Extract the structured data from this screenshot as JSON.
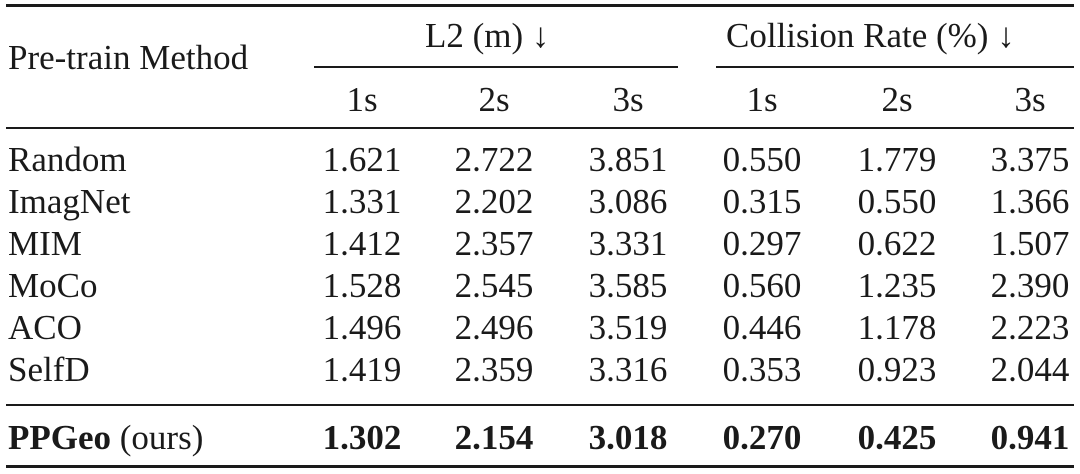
{
  "table": {
    "header": {
      "method": "Pre-train Method",
      "group_l2": "L2 (m) ↓",
      "group_collision": "Collision Rate (%) ↓",
      "sub": [
        "1s",
        "2s",
        "3s",
        "1s",
        "2s",
        "3s"
      ]
    },
    "rows": [
      {
        "name": "Random",
        "values": [
          "1.621",
          "2.722",
          "3.851",
          "0.550",
          "1.779",
          "3.375"
        ]
      },
      {
        "name": "ImagNet",
        "values": [
          "1.331",
          "2.202",
          "3.086",
          "0.315",
          "0.550",
          "1.366"
        ]
      },
      {
        "name": "MIM",
        "values": [
          "1.412",
          "2.357",
          "3.331",
          "0.297",
          "0.622",
          "1.507"
        ]
      },
      {
        "name": "MoCo",
        "values": [
          "1.528",
          "2.545",
          "3.585",
          "0.560",
          "1.235",
          "2.390"
        ]
      },
      {
        "name": "ACO",
        "values": [
          "1.496",
          "2.496",
          "3.519",
          "0.446",
          "1.178",
          "2.223"
        ]
      },
      {
        "name": "SelfD",
        "values": [
          "1.419",
          "2.359",
          "3.316",
          "0.353",
          "0.923",
          "2.044"
        ]
      }
    ],
    "ours": {
      "name_bold": "PPGeo",
      "name_suffix": " (ours)",
      "values": [
        "1.302",
        "2.154",
        "3.018",
        "0.270",
        "0.425",
        "0.941"
      ]
    }
  }
}
